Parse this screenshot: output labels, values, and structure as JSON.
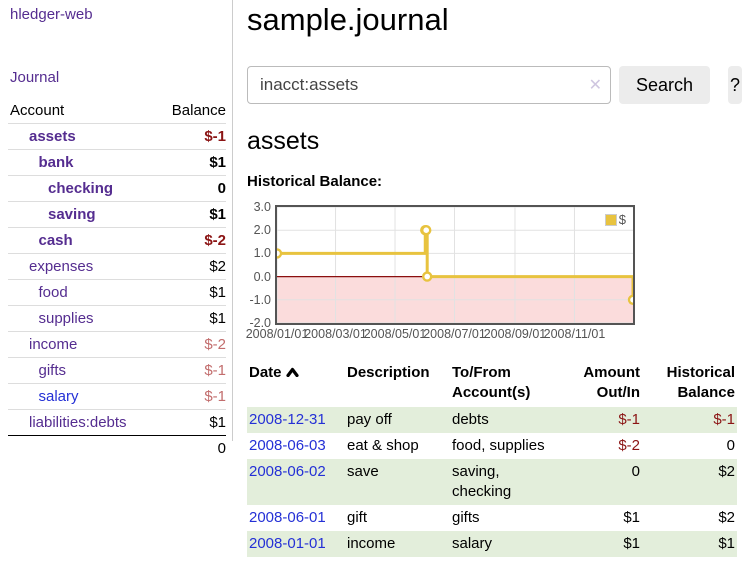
{
  "app": {
    "title": "hledger-web",
    "nav_journal": "Journal"
  },
  "sidebar": {
    "col_account": "Account",
    "col_balance": "Balance",
    "accounts": [
      {
        "name": "assets",
        "depth": 0,
        "bold": true,
        "balance": "$-1",
        "neg": true,
        "light": false,
        "blue": false
      },
      {
        "name": "bank",
        "depth": 1,
        "bold": true,
        "balance": "$1",
        "neg": false,
        "light": false,
        "blue": false
      },
      {
        "name": "checking",
        "depth": 2,
        "bold": true,
        "balance": "0",
        "neg": false,
        "light": false,
        "blue": false
      },
      {
        "name": "saving",
        "depth": 2,
        "bold": true,
        "balance": "$1",
        "neg": false,
        "light": false,
        "blue": false
      },
      {
        "name": "cash",
        "depth": 1,
        "bold": true,
        "balance": "$-2",
        "neg": true,
        "light": false,
        "blue": false
      },
      {
        "name": "expenses",
        "depth": 0,
        "bold": false,
        "balance": "$2",
        "neg": false,
        "light": false,
        "blue": false
      },
      {
        "name": "food",
        "depth": 1,
        "bold": false,
        "balance": "$1",
        "neg": false,
        "light": false,
        "blue": false
      },
      {
        "name": "supplies",
        "depth": 1,
        "bold": false,
        "balance": "$1",
        "neg": false,
        "light": false,
        "blue": false
      },
      {
        "name": "income",
        "depth": 0,
        "bold": false,
        "balance": "$-2",
        "neg": true,
        "light": true,
        "blue": false
      },
      {
        "name": "gifts",
        "depth": 1,
        "bold": false,
        "balance": "$-1",
        "neg": true,
        "light": true,
        "blue": false
      },
      {
        "name": "salary",
        "depth": 1,
        "bold": false,
        "balance": "$-1",
        "neg": true,
        "light": true,
        "blue": true
      },
      {
        "name": "liabilities:debts",
        "depth": 0,
        "bold": false,
        "balance": "$1",
        "neg": false,
        "light": false,
        "blue": false
      }
    ],
    "total": "0"
  },
  "header": {
    "title": "sample.journal"
  },
  "search": {
    "query": "inacct:assets",
    "clear_icon": "✕",
    "button_label": "Search",
    "help_label": "?"
  },
  "account_page": {
    "heading": "assets",
    "chart_title": "Historical Balance:"
  },
  "chart_data": {
    "type": "line",
    "title": "Historical Balance",
    "legend": [
      {
        "label": "$",
        "color": "#e8c33f"
      }
    ],
    "ylim": [
      -2,
      3
    ],
    "y_ticks": [
      "3.0",
      "2.0",
      "1.0",
      "0.0",
      "-1.0",
      "-2.0"
    ],
    "y_tick_values": [
      3,
      2,
      1,
      0,
      -1,
      -2
    ],
    "xlim_days": [
      0,
      365
    ],
    "x_ticks": [
      {
        "label": "2008/01/01",
        "day": 0
      },
      {
        "label": "2008/03/01",
        "day": 60
      },
      {
        "label": "2008/05/01",
        "day": 121
      },
      {
        "label": "2008/07/01",
        "day": 182
      },
      {
        "label": "2008/09/01",
        "day": 244
      },
      {
        "label": "2008/11/01",
        "day": 305
      }
    ],
    "series": [
      {
        "name": "$",
        "color": "#e8c33f",
        "points": [
          {
            "date": "2008/01/01",
            "day": 0,
            "value": 1
          },
          {
            "date": "2008/06/01",
            "day": 152,
            "value": 2
          },
          {
            "date": "2008/06/02",
            "day": 153,
            "value": 2
          },
          {
            "date": "2008/06/03",
            "day": 154,
            "value": 0
          },
          {
            "date": "2008/12/31",
            "day": 365,
            "value": -1
          }
        ]
      }
    ],
    "grid": true,
    "negative_region_fill": "#fbdcdc",
    "zero_line_color": "#8b0f0f",
    "border_color": "#545454",
    "gridline_color": "#e2e2e2"
  },
  "register": {
    "headers": {
      "date": "Date",
      "description": "Description",
      "accounts": "To/From Account(s)",
      "amount": "Amount Out/In",
      "balance": "Historical Balance"
    },
    "rows": [
      {
        "date": "2008-12-31",
        "description": "pay off",
        "accounts": "debts",
        "amount": "$-1",
        "amount_neg": true,
        "balance": "$-1",
        "balance_neg": true
      },
      {
        "date": "2008-06-03",
        "description": "eat & shop",
        "accounts": "food, supplies",
        "amount": "$-2",
        "amount_neg": true,
        "balance": "0",
        "balance_neg": false
      },
      {
        "date": "2008-06-02",
        "description": "save",
        "accounts": "saving, checking",
        "amount": "0",
        "amount_neg": false,
        "balance": "$2",
        "balance_neg": false
      },
      {
        "date": "2008-06-01",
        "description": "gift",
        "accounts": "gifts",
        "amount": "$1",
        "amount_neg": false,
        "balance": "$2",
        "balance_neg": false
      },
      {
        "date": "2008-01-01",
        "description": "income",
        "accounts": "salary",
        "amount": "$1",
        "amount_neg": false,
        "balance": "$1",
        "balance_neg": false
      }
    ]
  },
  "colors": {
    "link_purple": "#552d90",
    "link_blue": "#2430d6",
    "negative_dark": "#8b1414",
    "negative_light": "#c26d6d",
    "row_stripe_green": "#e3eedb",
    "series_yellow": "#e8c33f"
  }
}
